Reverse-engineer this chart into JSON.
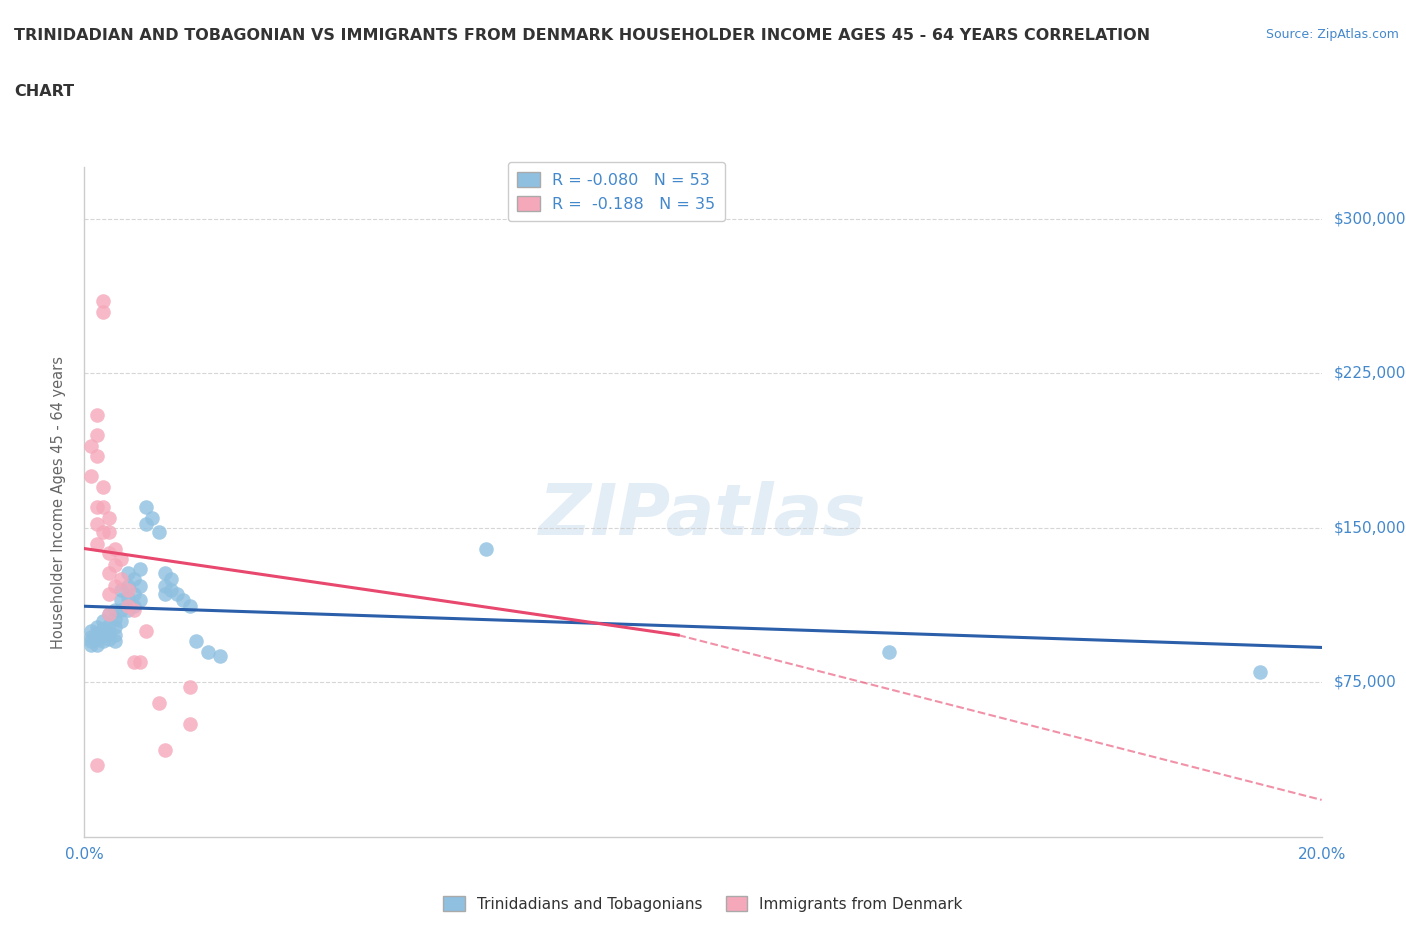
{
  "title": "TRINIDADIAN AND TOBAGONIAN VS IMMIGRANTS FROM DENMARK HOUSEHOLDER INCOME AGES 45 - 64 YEARS CORRELATION\nCHART",
  "source_text": "Source: ZipAtlas.com",
  "ylabel": "Householder Income Ages 45 - 64 years",
  "xlim": [
    0.0,
    0.2
  ],
  "ylim": [
    0,
    325000
  ],
  "yticks": [
    75000,
    150000,
    225000,
    300000
  ],
  "ytick_labels": [
    "$75,000",
    "$150,000",
    "$225,000",
    "$300,000"
  ],
  "watermark": "ZIPatlas",
  "blue_R": -0.08,
  "blue_N": 53,
  "pink_R": -0.188,
  "pink_N": 35,
  "legend_label_blue": "Trinidadians and Tobagonians",
  "legend_label_pink": "Immigrants from Denmark",
  "blue_color": "#8fc0e0",
  "pink_color": "#f5a8ba",
  "blue_line_color": "#2b5faa",
  "pink_line_color": "#e8486e",
  "axis_color": "#4488cc",
  "title_color": "#333333",
  "blue_scatter": [
    [
      0.001,
      100000
    ],
    [
      0.001,
      97000
    ],
    [
      0.001,
      95000
    ],
    [
      0.001,
      93000
    ],
    [
      0.002,
      102000
    ],
    [
      0.002,
      99000
    ],
    [
      0.002,
      96000
    ],
    [
      0.002,
      93000
    ],
    [
      0.003,
      105000
    ],
    [
      0.003,
      101000
    ],
    [
      0.003,
      98000
    ],
    [
      0.003,
      95000
    ],
    [
      0.004,
      108000
    ],
    [
      0.004,
      103000
    ],
    [
      0.004,
      99000
    ],
    [
      0.004,
      96000
    ],
    [
      0.005,
      110000
    ],
    [
      0.005,
      106000
    ],
    [
      0.005,
      102000
    ],
    [
      0.005,
      98000
    ],
    [
      0.005,
      95000
    ],
    [
      0.006,
      120000
    ],
    [
      0.006,
      115000
    ],
    [
      0.006,
      110000
    ],
    [
      0.006,
      105000
    ],
    [
      0.007,
      128000
    ],
    [
      0.007,
      122000
    ],
    [
      0.007,
      116000
    ],
    [
      0.007,
      110000
    ],
    [
      0.008,
      125000
    ],
    [
      0.008,
      118000
    ],
    [
      0.008,
      112000
    ],
    [
      0.009,
      130000
    ],
    [
      0.009,
      122000
    ],
    [
      0.009,
      115000
    ],
    [
      0.01,
      160000
    ],
    [
      0.01,
      152000
    ],
    [
      0.011,
      155000
    ],
    [
      0.012,
      148000
    ],
    [
      0.013,
      128000
    ],
    [
      0.013,
      122000
    ],
    [
      0.013,
      118000
    ],
    [
      0.014,
      125000
    ],
    [
      0.014,
      120000
    ],
    [
      0.015,
      118000
    ],
    [
      0.016,
      115000
    ],
    [
      0.017,
      112000
    ],
    [
      0.018,
      95000
    ],
    [
      0.02,
      90000
    ],
    [
      0.022,
      88000
    ],
    [
      0.065,
      140000
    ],
    [
      0.13,
      90000
    ],
    [
      0.19,
      80000
    ]
  ],
  "pink_scatter": [
    [
      0.001,
      190000
    ],
    [
      0.001,
      175000
    ],
    [
      0.002,
      205000
    ],
    [
      0.002,
      195000
    ],
    [
      0.002,
      185000
    ],
    [
      0.002,
      160000
    ],
    [
      0.002,
      152000
    ],
    [
      0.002,
      142000
    ],
    [
      0.003,
      260000
    ],
    [
      0.003,
      255000
    ],
    [
      0.003,
      170000
    ],
    [
      0.003,
      160000
    ],
    [
      0.003,
      148000
    ],
    [
      0.004,
      155000
    ],
    [
      0.004,
      148000
    ],
    [
      0.004,
      138000
    ],
    [
      0.004,
      128000
    ],
    [
      0.004,
      118000
    ],
    [
      0.004,
      108000
    ],
    [
      0.005,
      140000
    ],
    [
      0.005,
      132000
    ],
    [
      0.005,
      122000
    ],
    [
      0.006,
      135000
    ],
    [
      0.006,
      125000
    ],
    [
      0.007,
      120000
    ],
    [
      0.007,
      112000
    ],
    [
      0.008,
      110000
    ],
    [
      0.008,
      85000
    ],
    [
      0.009,
      85000
    ],
    [
      0.01,
      100000
    ],
    [
      0.012,
      65000
    ],
    [
      0.013,
      42000
    ],
    [
      0.017,
      73000
    ],
    [
      0.017,
      55000
    ],
    [
      0.002,
      35000
    ]
  ],
  "grid_color": "#cccccc",
  "bg_color": "#ffffff"
}
